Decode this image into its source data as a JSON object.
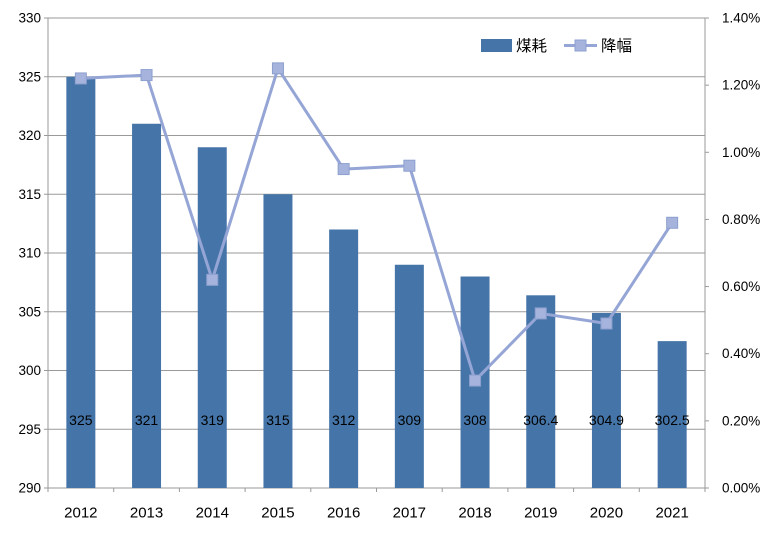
{
  "chart_data": {
    "type": "combo",
    "title": "",
    "categories": [
      "2012",
      "2013",
      "2014",
      "2015",
      "2016",
      "2017",
      "2018",
      "2019",
      "2020",
      "2021"
    ],
    "series": [
      {
        "name": "煤耗",
        "type": "bar",
        "axis": "left",
        "values": [
          325,
          321,
          319,
          315,
          312,
          309,
          308,
          306.4,
          304.9,
          302.5
        ],
        "data_labels": [
          "325",
          "321",
          "319",
          "315",
          "312",
          "309",
          "308",
          "306.4",
          "304.9",
          "302.5"
        ],
        "color": "#4575A8"
      },
      {
        "name": "降幅",
        "type": "line",
        "axis": "right",
        "values_percent": [
          1.22,
          1.23,
          0.62,
          1.25,
          0.95,
          0.96,
          0.32,
          0.52,
          0.49,
          0.79
        ],
        "line_color": "#95A5D5",
        "marker": "square",
        "marker_fill": "#A6B3DD",
        "marker_stroke": "#8DA0CE"
      }
    ],
    "axes": {
      "left": {
        "min": 290,
        "max": 330,
        "step": 5,
        "tick_labels_top_to_bottom": [
          "330",
          "325",
          "320",
          "315",
          "310",
          "305",
          "300",
          "295",
          "290"
        ]
      },
      "right": {
        "min": 0.0,
        "max": 1.4,
        "step": 0.2,
        "tick_labels_top_to_bottom": [
          "1.40%",
          "1.20%",
          "1.00%",
          "0.80%",
          "0.60%",
          "0.40%",
          "0.20%",
          "0.00%"
        ]
      }
    },
    "legend": {
      "position": "top",
      "entries": [
        {
          "label": "煤耗",
          "swatch": "bar"
        },
        {
          "label": "降幅",
          "swatch": "line-marker"
        }
      ]
    },
    "grid": {
      "horizontal": true,
      "color": "#9A9A9A"
    },
    "colors": {
      "bar": "#4575A8",
      "line": "#95A5D5",
      "marker_fill": "#A6B3DD",
      "marker_stroke": "#8DA0CE",
      "axis": "#9A9A9A",
      "text": "#000000",
      "background": "#FFFFFF"
    }
  }
}
